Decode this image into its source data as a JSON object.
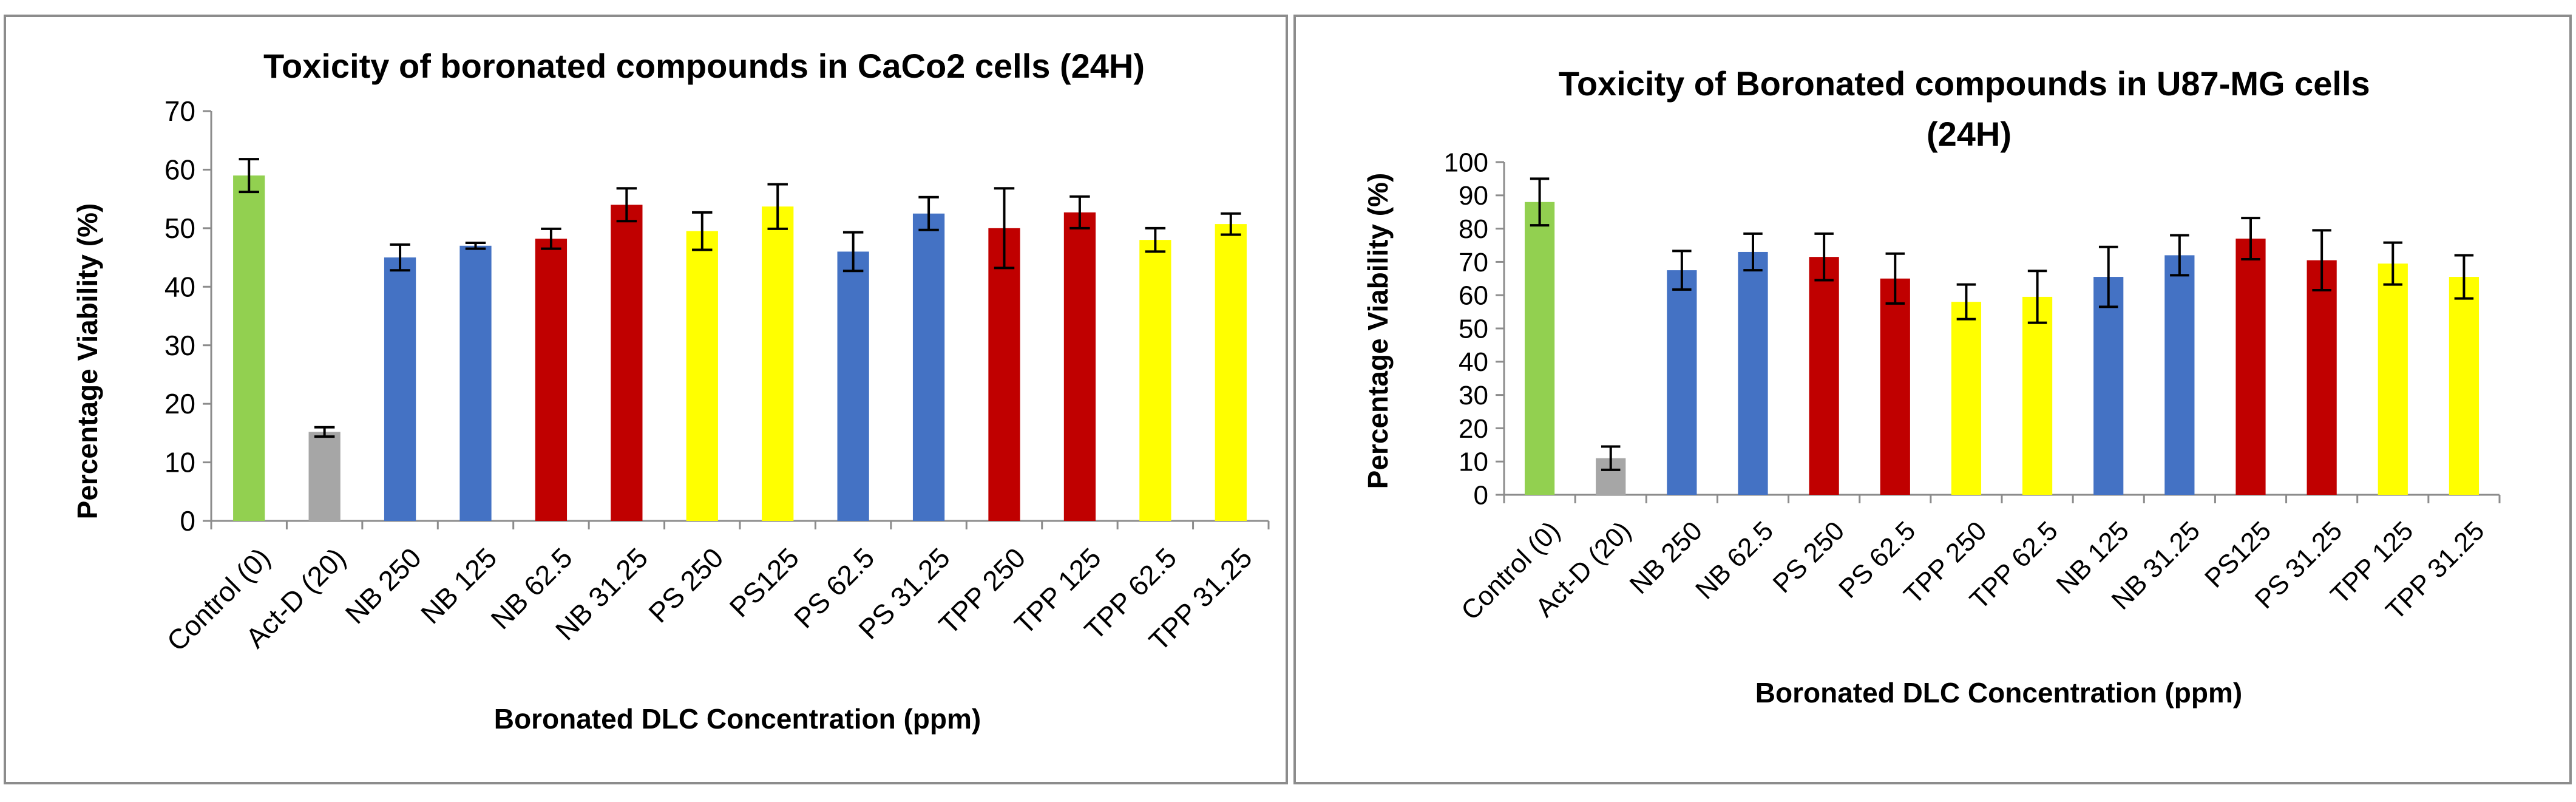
{
  "chart_data": [
    {
      "type": "bar",
      "title": "Toxicity of boronated compounds in CaCo2 cells (24H)",
      "xlabel": "Boronated DLC Concentration (ppm)",
      "ylabel": "Percentage Viability (%)",
      "ylim": [
        0,
        70
      ],
      "yticks": [
        0,
        10,
        20,
        30,
        40,
        50,
        60,
        70
      ],
      "categories": [
        "Control (0)",
        "Act-D (20)",
        "NB 250",
        "NB 125",
        "NB 62.5",
        "NB 31.25",
        "PS 250",
        "PS125",
        "PS 62.5",
        "PS 31.25",
        "TPP 250",
        "TPP 125",
        "TPP 62.5",
        "TPP 31.25"
      ],
      "values": [
        59,
        15.2,
        45,
        47,
        48.2,
        54,
        49.5,
        53.7,
        46,
        52.5,
        50,
        52.7,
        48,
        50.7
      ],
      "errors": [
        2.8,
        0.8,
        2.2,
        0.5,
        1.7,
        2.8,
        3.2,
        3.8,
        3.3,
        2.8,
        6.8,
        2.7,
        2.0,
        1.8
      ],
      "colors": [
        "#92d050",
        "#a6a6a6",
        "#4472c4",
        "#4472c4",
        "#c00000",
        "#c00000",
        "#ffff00",
        "#ffff00",
        "#4472c4",
        "#4472c4",
        "#c00000",
        "#c00000",
        "#ffff00",
        "#ffff00"
      ],
      "grid": false,
      "legend": "none"
    },
    {
      "type": "bar",
      "title": "Toxicity of Boronated compounds in U87-MG cells (24H)",
      "title_lines": [
        "Toxicity of Boronated compounds in U87-MG cells",
        "(24H)"
      ],
      "xlabel": "Boronated DLC Concentration (ppm)",
      "ylabel": "Percentage Viability (%)",
      "ylim": [
        0,
        100
      ],
      "yticks": [
        0,
        10,
        20,
        30,
        40,
        50,
        60,
        70,
        80,
        90,
        100
      ],
      "categories": [
        "Control (0)",
        "Act-D (20)",
        "NB 250",
        "NB 62.5",
        "PS 250",
        "PS 62.5",
        "TPP 250",
        "TPP 62.5",
        "NB 125",
        "NB 31.25",
        "PS125",
        "PS 31.25",
        "TPP 125",
        "TPP 31.25"
      ],
      "values": [
        88,
        11,
        67.5,
        73,
        71.5,
        65,
        58,
        59.5,
        65.5,
        72,
        77,
        70.5,
        69.5,
        65.5
      ],
      "errors": [
        7,
        3.5,
        5.8,
        5.5,
        7,
        7.5,
        5.2,
        7.8,
        9,
        6,
        6.2,
        9,
        6.3,
        6.5
      ],
      "colors": [
        "#92d050",
        "#a6a6a6",
        "#4472c4",
        "#4472c4",
        "#c00000",
        "#c00000",
        "#ffff00",
        "#ffff00",
        "#4472c4",
        "#4472c4",
        "#c00000",
        "#c00000",
        "#ffff00",
        "#ffff00"
      ],
      "grid": false,
      "legend": "none"
    }
  ]
}
